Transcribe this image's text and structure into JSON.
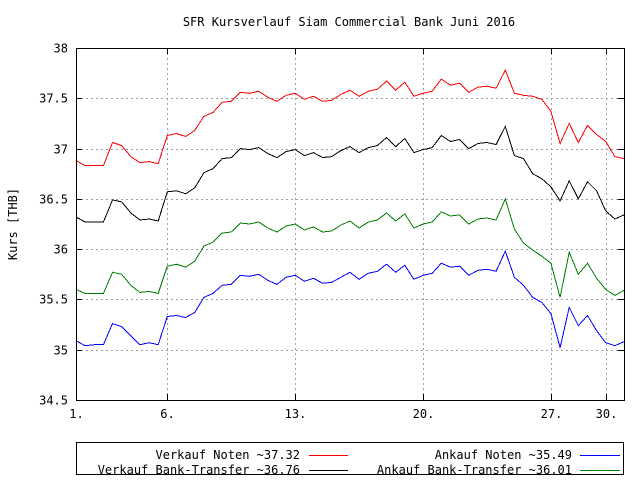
{
  "chart_data": {
    "type": "line",
    "title": "SFR Kursverlauf Siam Commercial Bank Juni 2016",
    "xlabel": "",
    "ylabel": "Kurs [THB]",
    "xlim": [
      1,
      31
    ],
    "ylim": [
      34.5,
      38
    ],
    "x_ticks": [
      {
        "value": 1,
        "label": "1."
      },
      {
        "value": 6,
        "label": "6."
      },
      {
        "value": 13,
        "label": "13."
      },
      {
        "value": 20,
        "label": "20."
      },
      {
        "value": 27,
        "label": "27."
      },
      {
        "value": 30,
        "label": "30."
      }
    ],
    "y_ticks": [
      {
        "value": 34.5,
        "label": "34.5"
      },
      {
        "value": 35,
        "label": "35"
      },
      {
        "value": 35.5,
        "label": "35.5"
      },
      {
        "value": 36,
        "label": "36"
      },
      {
        "value": 36.5,
        "label": "36.5"
      },
      {
        "value": 37,
        "label": "37"
      },
      {
        "value": 37.5,
        "label": "37.5"
      },
      {
        "value": 38,
        "label": "38"
      }
    ],
    "grid": true,
    "legend_position": "bottom",
    "x": [
      1,
      1.5,
      2,
      2.5,
      3,
      3.5,
      4,
      4.5,
      5,
      5.5,
      6,
      6.5,
      7,
      7.5,
      8,
      8.5,
      9,
      9.5,
      10,
      10.5,
      11,
      11.5,
      12,
      12.5,
      13,
      13.5,
      14,
      14.5,
      15,
      15.5,
      16,
      16.5,
      17,
      17.5,
      18,
      18.5,
      19,
      19.5,
      20,
      20.5,
      21,
      21.5,
      22,
      22.5,
      23,
      23.5,
      24,
      24.5,
      25,
      25.5,
      26,
      26.5,
      27,
      27.5,
      28,
      28.5,
      29,
      29.5,
      30,
      30.5,
      31
    ],
    "series": [
      {
        "name": "Verkauf Noten ~37.32",
        "color": "#ff0000",
        "values": [
          36.88,
          36.83,
          36.83,
          36.83,
          37.06,
          37.03,
          36.92,
          36.86,
          36.87,
          36.85,
          37.13,
          37.15,
          37.12,
          37.18,
          37.32,
          37.36,
          37.46,
          37.47,
          37.56,
          37.55,
          37.57,
          37.51,
          37.47,
          37.53,
          37.55,
          37.49,
          37.52,
          37.47,
          37.48,
          37.54,
          37.58,
          37.52,
          37.57,
          37.59,
          37.67,
          37.58,
          37.66,
          37.52,
          37.55,
          37.57,
          37.69,
          37.63,
          37.65,
          37.56,
          37.61,
          37.62,
          37.6,
          37.78,
          37.55,
          37.53,
          37.52,
          37.49,
          37.37,
          37.05,
          37.25,
          37.06,
          37.23,
          37.14,
          37.07,
          36.92,
          36.9
        ]
      },
      {
        "name": "Ankauf Noten ~35.49",
        "color": "#0000ff",
        "values": [
          35.09,
          35.04,
          35.05,
          35.05,
          35.26,
          35.23,
          35.14,
          35.05,
          35.07,
          35.05,
          35.33,
          35.34,
          35.32,
          35.37,
          35.52,
          35.56,
          35.64,
          35.65,
          35.74,
          35.73,
          35.75,
          35.69,
          35.65,
          35.72,
          35.74,
          35.68,
          35.71,
          35.66,
          35.67,
          35.72,
          35.77,
          35.7,
          35.76,
          35.78,
          35.85,
          35.77,
          35.84,
          35.7,
          35.74,
          35.76,
          35.86,
          35.82,
          35.83,
          35.74,
          35.79,
          35.8,
          35.78,
          35.98,
          35.72,
          35.64,
          35.52,
          35.47,
          35.36,
          35.02,
          35.42,
          35.24,
          35.34,
          35.19,
          35.07,
          35.04,
          35.08
        ]
      },
      {
        "name": "Verkauf Bank-Transfer ~36.76",
        "color": "#000000",
        "values": [
          36.32,
          36.27,
          36.27,
          36.27,
          36.49,
          36.47,
          36.36,
          36.29,
          36.3,
          36.28,
          36.57,
          36.58,
          36.55,
          36.61,
          36.76,
          36.8,
          36.9,
          36.91,
          37.0,
          36.99,
          37.01,
          36.95,
          36.91,
          36.97,
          36.99,
          36.93,
          36.96,
          36.91,
          36.92,
          36.98,
          37.02,
          36.96,
          37.01,
          37.03,
          37.11,
          37.02,
          37.1,
          36.96,
          36.99,
          37.01,
          37.13,
          37.07,
          37.09,
          37.0,
          37.05,
          37.06,
          37.04,
          37.22,
          36.93,
          36.9,
          36.75,
          36.7,
          36.62,
          36.48,
          36.68,
          36.5,
          36.67,
          36.58,
          36.38,
          36.3,
          36.34
        ]
      },
      {
        "name": "Ankauf Bank-Transfer ~36.01",
        "color": "#008000",
        "values": [
          35.6,
          35.56,
          35.56,
          35.56,
          35.77,
          35.75,
          35.64,
          35.57,
          35.58,
          35.56,
          35.83,
          35.85,
          35.82,
          35.88,
          36.03,
          36.07,
          36.16,
          36.17,
          36.26,
          36.25,
          36.27,
          36.21,
          36.17,
          36.23,
          36.25,
          36.19,
          36.22,
          36.17,
          36.18,
          36.24,
          36.28,
          36.21,
          36.27,
          36.29,
          36.36,
          36.28,
          36.35,
          36.21,
          36.25,
          36.27,
          36.37,
          36.33,
          36.34,
          36.25,
          36.3,
          36.31,
          36.29,
          36.5,
          36.2,
          36.06,
          35.99,
          35.93,
          35.86,
          35.52,
          35.97,
          35.75,
          35.86,
          35.71,
          35.6,
          35.54,
          35.59
        ]
      }
    ]
  }
}
